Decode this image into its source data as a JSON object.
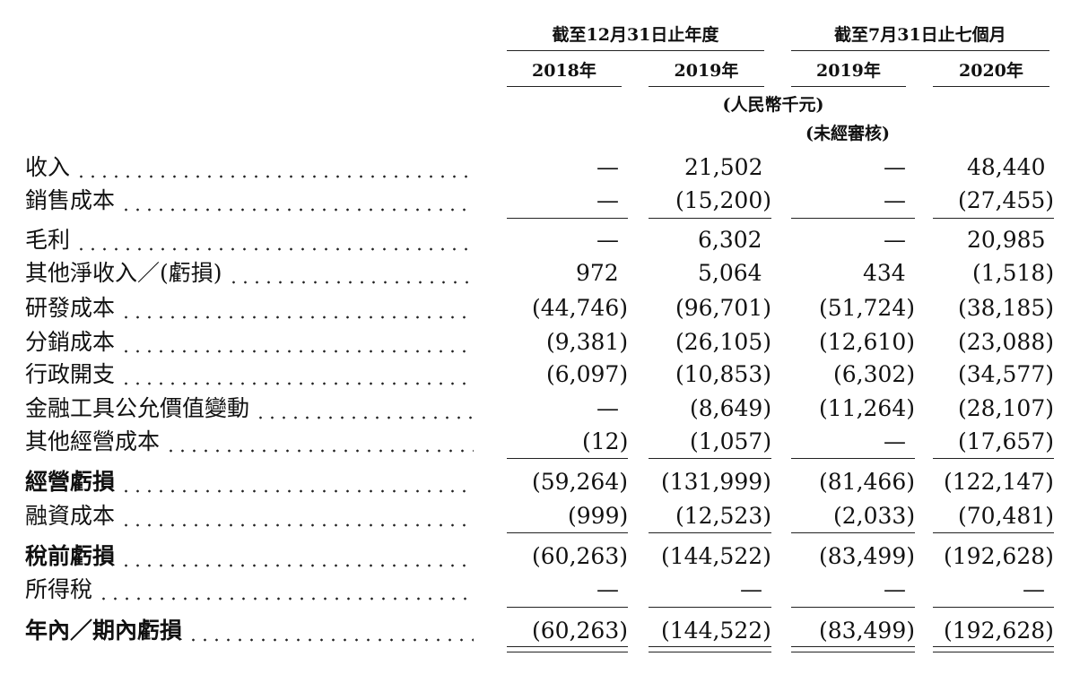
{
  "header": {
    "groups": [
      {
        "title": "截至12月31日止年度"
      },
      {
        "title": "截至7月31日止七個月"
      }
    ],
    "years": [
      "2018年",
      "2019年",
      "2019年",
      "2020年"
    ],
    "units": [
      "(人民幣千元)",
      "(未經審核)"
    ]
  },
  "rows": [
    {
      "label": "收入",
      "values": [
        "—",
        "21,502",
        "—",
        "48,440"
      ]
    },
    {
      "label": "銷售成本",
      "values": [
        "—",
        "(15,200)",
        "—",
        "(27,455)"
      ]
    },
    {
      "label": "毛利",
      "values": [
        "—",
        "6,302",
        "—",
        "20,985"
      ]
    },
    {
      "label": "其他淨收入／(虧損)",
      "values": [
        "972",
        "5,064",
        "434",
        "(1,518)"
      ]
    },
    {
      "label": "研發成本",
      "values": [
        "(44,746)",
        "(96,701)",
        "(51,724)",
        "(38,185)"
      ]
    },
    {
      "label": "分銷成本",
      "values": [
        "(9,381)",
        "(26,105)",
        "(12,610)",
        "(23,088)"
      ]
    },
    {
      "label": "行政開支",
      "values": [
        "(6,097)",
        "(10,853)",
        "(6,302)",
        "(34,577)"
      ]
    },
    {
      "label": "金融工具公允價值變動",
      "values": [
        "—",
        "(8,649)",
        "(11,264)",
        "(28,107)"
      ]
    },
    {
      "label": "其他經營成本",
      "values": [
        "(12)",
        "(1,057)",
        "—",
        "(17,657)"
      ]
    },
    {
      "label": "經營虧損",
      "values": [
        "(59,264)",
        "(131,999)",
        "(81,466)",
        "(122,147)"
      ]
    },
    {
      "label": "融資成本",
      "values": [
        "(999)",
        "(12,523)",
        "(2,033)",
        "(70,481)"
      ]
    },
    {
      "label": "稅前虧損",
      "values": [
        "(60,263)",
        "(144,522)",
        "(83,499)",
        "(192,628)"
      ]
    },
    {
      "label": "所得稅",
      "values": [
        "—",
        "—",
        "—",
        "—"
      ]
    },
    {
      "label": "年內／期內虧損",
      "values": [
        "(60,263)",
        "(144,522)",
        "(83,499)",
        "(192,628)"
      ]
    }
  ]
}
